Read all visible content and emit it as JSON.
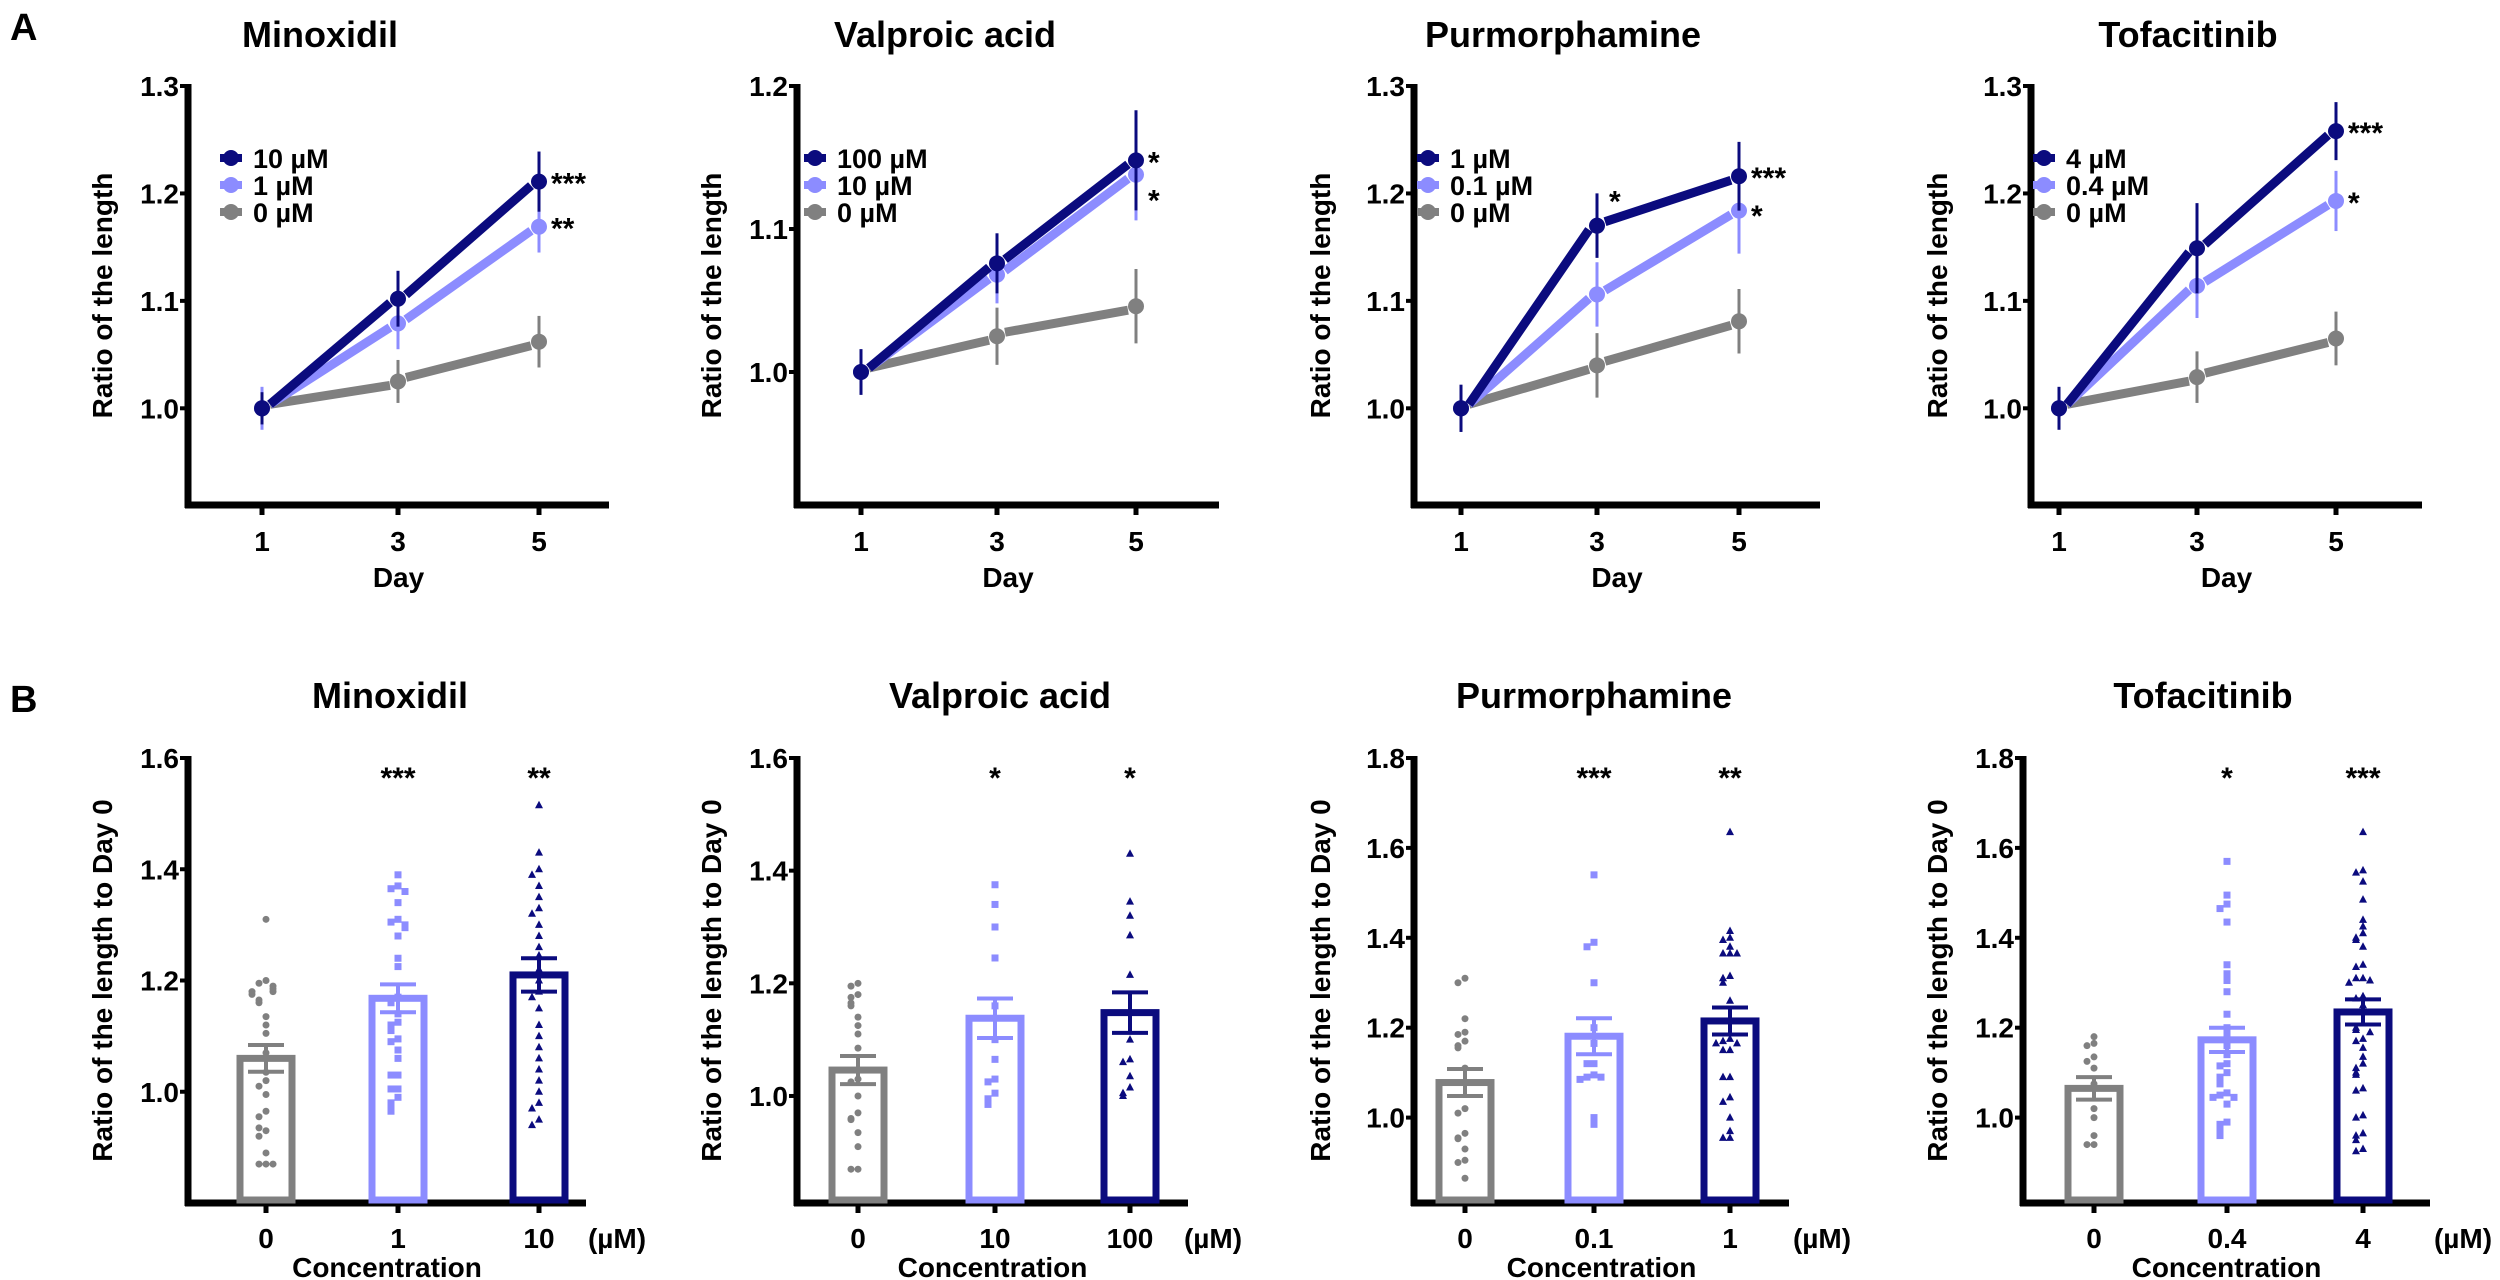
{
  "panel_labels": [
    "A",
    "B"
  ],
  "colors": {
    "high": "#0b0b7e",
    "low": "#8c8cff",
    "zero": "#808080",
    "axis": "#000000"
  },
  "chart_data": [
    {
      "type": "line",
      "panel": "A",
      "title": "Minoxidil",
      "xlabel": "Day",
      "ylabel": "Ratio of the length",
      "x": [
        1,
        3,
        5
      ],
      "xtick_labels": [
        "1",
        "3",
        "5"
      ],
      "ylim": [
        0.91,
        1.3
      ],
      "yticks": [
        1.0,
        1.1,
        1.2,
        1.3
      ],
      "ytick_labels": [
        "1.0",
        "1.1",
        "1.2",
        "1.3"
      ],
      "legend_position": "top-left",
      "series": [
        {
          "name": "10 µM",
          "color": "high",
          "values": [
            1.0,
            1.102,
            1.211
          ],
          "errors": [
            0.015,
            0.026,
            0.028
          ],
          "stars": [
            "",
            "",
            "***"
          ]
        },
        {
          "name": "1 µM",
          "color": "low",
          "values": [
            1.0,
            1.079,
            1.169
          ],
          "errors": [
            0.02,
            0.024,
            0.024
          ],
          "stars": [
            "",
            "",
            "**"
          ]
        },
        {
          "name": "0 µM",
          "color": "zero",
          "values": [
            1.0,
            1.025,
            1.062
          ],
          "errors": [
            0.012,
            0.02,
            0.024
          ],
          "stars": [
            "",
            "",
            ""
          ]
        }
      ]
    },
    {
      "type": "line",
      "panel": "A",
      "title": "Valproic acid",
      "xlabel": "Day",
      "ylabel": "Ratio of the length",
      "x": [
        1,
        3,
        5
      ],
      "xtick_labels": [
        "1",
        "3",
        "5"
      ],
      "ylim": [
        0.907,
        1.2
      ],
      "yticks": [
        1.0,
        1.1,
        1.2
      ],
      "ytick_labels": [
        "1.0",
        "1.1",
        "1.2"
      ],
      "legend_position": "top-left",
      "series": [
        {
          "name": "100 µM",
          "color": "high",
          "values": [
            1.0,
            1.076,
            1.148
          ],
          "errors": [
            0.016,
            0.021,
            0.035
          ],
          "stars": [
            "",
            "",
            "*"
          ]
        },
        {
          "name": "10 µM",
          "color": "low",
          "values": [
            1.0,
            1.068,
            1.138
          ],
          "errors": [
            0.015,
            0.02,
            0.032
          ],
          "stars": [
            "",
            "",
            "*"
          ]
        },
        {
          "name": "0 µM",
          "color": "zero",
          "values": [
            1.0,
            1.025,
            1.046
          ],
          "errors": [
            0.012,
            0.02,
            0.026
          ],
          "stars": [
            "",
            "",
            ""
          ]
        }
      ]
    },
    {
      "type": "line",
      "panel": "A",
      "title": "Purmorphamine",
      "xlabel": "Day",
      "ylabel": "Ratio of the length",
      "x": [
        1,
        3,
        5
      ],
      "xtick_labels": [
        "1",
        "3",
        "5"
      ],
      "ylim": [
        0.91,
        1.3
      ],
      "yticks": [
        1.0,
        1.1,
        1.2,
        1.3
      ],
      "ytick_labels": [
        "1.0",
        "1.1",
        "1.2",
        "1.3"
      ],
      "legend_position": "top-left",
      "series": [
        {
          "name": "1 µM",
          "color": "high",
          "values": [
            1.0,
            1.17,
            1.216
          ],
          "errors": [
            0.022,
            0.03,
            0.032
          ],
          "stars": [
            "",
            "*",
            "***"
          ]
        },
        {
          "name": "0.1 µM",
          "color": "low",
          "values": [
            1.0,
            1.106,
            1.184
          ],
          "errors": [
            0.015,
            0.03,
            0.04
          ],
          "stars": [
            "",
            "",
            "*"
          ]
        },
        {
          "name": "0 µM",
          "color": "zero",
          "values": [
            1.0,
            1.04,
            1.081
          ],
          "errors": [
            0.012,
            0.03,
            0.03
          ],
          "stars": [
            "",
            "",
            ""
          ]
        }
      ]
    },
    {
      "type": "line",
      "panel": "A",
      "title": "Tofacitinib",
      "xlabel": "Day",
      "ylabel": "Ratio of the length",
      "x": [
        1,
        3,
        5
      ],
      "xtick_labels": [
        "1",
        "3",
        "5"
      ],
      "ylim": [
        0.91,
        1.3
      ],
      "yticks": [
        1.0,
        1.1,
        1.2,
        1.3
      ],
      "ytick_labels": [
        "1.0",
        "1.1",
        "1.2",
        "1.3"
      ],
      "legend_position": "top-left",
      "series": [
        {
          "name": "4 µM",
          "color": "high",
          "values": [
            1.0,
            1.149,
            1.258
          ],
          "errors": [
            0.02,
            0.042,
            0.027
          ],
          "stars": [
            "",
            "",
            "***"
          ]
        },
        {
          "name": "0.4 µM",
          "color": "low",
          "values": [
            1.0,
            1.114,
            1.193
          ],
          "errors": [
            0.015,
            0.03,
            0.028
          ],
          "stars": [
            "",
            "",
            "*"
          ]
        },
        {
          "name": "0 µM",
          "color": "zero",
          "values": [
            1.0,
            1.029,
            1.065
          ],
          "errors": [
            0.012,
            0.024,
            0.025
          ],
          "stars": [
            "",
            "",
            ""
          ]
        }
      ]
    },
    {
      "type": "bar",
      "panel": "B",
      "title": "Minoxidil",
      "xlabel": "Concentration",
      "ylabel": "Ratio of the length to Day 0",
      "unit": "(µM)",
      "categories": [
        "0",
        "1",
        "10"
      ],
      "colors": [
        "zero",
        "low",
        "high"
      ],
      "markers": [
        "circle",
        "square",
        "triangle"
      ],
      "values": [
        1.06,
        1.168,
        1.21
      ],
      "errors": [
        0.024,
        0.025,
        0.03
      ],
      "stars": [
        "",
        "***",
        "**"
      ],
      "ylim": [
        0.8,
        1.6
      ],
      "yticks": [
        1.0,
        1.2,
        1.4,
        1.6
      ],
      "ytick_labels": [
        "1.0",
        "1.2",
        "1.4",
        "1.6"
      ],
      "points": [
        [
          1.31,
          1.2,
          1.195,
          1.19,
          1.185,
          1.18,
          1.18,
          1.175,
          1.165,
          1.16,
          1.135,
          1.12,
          1.105,
          1.07,
          1.035,
          1.02,
          1.01,
          0.995,
          0.965,
          0.955,
          0.93,
          0.935,
          0.92,
          0.89,
          0.87,
          0.87,
          0.87
        ],
        [
          1.39,
          1.37,
          1.365,
          1.36,
          1.34,
          1.31,
          1.305,
          1.3,
          1.295,
          1.28,
          1.24,
          1.225,
          1.17,
          1.16,
          1.14,
          1.125,
          1.12,
          1.11,
          1.095,
          1.09,
          1.075,
          1.06,
          1.03,
          1.03,
          1.005,
          1.005,
          0.99,
          0.98,
          0.975,
          0.965
        ],
        [
          1.515,
          1.43,
          1.4,
          1.39,
          1.37,
          1.35,
          1.33,
          1.32,
          1.3,
          1.28,
          1.26,
          1.245,
          1.22,
          1.2,
          1.18,
          1.17,
          1.15,
          1.12,
          1.1,
          1.08,
          1.06,
          1.04,
          1.02,
          1.0,
          0.98,
          0.97,
          0.95,
          0.94
        ]
      ]
    },
    {
      "type": "bar",
      "panel": "B",
      "title": "Valproic acid",
      "xlabel": "Concentration",
      "ylabel": "Ratio of the length to Day 0",
      "unit": "(µM)",
      "categories": [
        "0",
        "10",
        "100"
      ],
      "colors": [
        "zero",
        "low",
        "high"
      ],
      "markers": [
        "circle",
        "square",
        "triangle"
      ],
      "values": [
        1.046,
        1.138,
        1.148
      ],
      "errors": [
        0.025,
        0.035,
        0.036
      ],
      "stars": [
        "",
        "*",
        "*"
      ],
      "ylim": [
        0.81,
        1.6
      ],
      "yticks": [
        1.0,
        1.2,
        1.4,
        1.6
      ],
      "ytick_labels": [
        "1.0",
        "1.2",
        "1.4",
        "1.6"
      ],
      "points": [
        [
          1.2,
          1.195,
          1.18,
          1.175,
          1.165,
          1.16,
          1.14,
          1.125,
          1.11,
          1.085,
          1.03,
          1.025,
          1.0,
          0.97,
          0.96,
          0.958,
          0.935,
          0.91,
          0.87,
          0.87
        ],
        [
          1.375,
          1.34,
          1.3,
          1.245,
          1.16,
          1.1,
          1.065,
          1.03,
          1.025,
          1.005,
          0.995,
          0.985
        ],
        [
          1.43,
          1.345,
          1.32,
          1.285,
          1.215,
          1.1,
          1.065,
          1.06,
          1.035,
          1.015,
          1.005,
          1.0
        ]
      ]
    },
    {
      "type": "bar",
      "panel": "B",
      "title": "Purmorphamine",
      "xlabel": "Concentration",
      "ylabel": "Ratio of the length to Day 0",
      "unit": "(µM)",
      "categories": [
        "0",
        "0.1",
        "1"
      ],
      "colors": [
        "zero",
        "low",
        "high"
      ],
      "markers": [
        "circle",
        "square",
        "triangle"
      ],
      "values": [
        1.078,
        1.181,
        1.215
      ],
      "errors": [
        0.03,
        0.04,
        0.03
      ],
      "stars": [
        "",
        "***",
        "**"
      ],
      "ylim": [
        0.81,
        1.8
      ],
      "yticks": [
        1.0,
        1.2,
        1.4,
        1.6,
        1.8
      ],
      "ytick_labels": [
        "1.0",
        "1.2",
        "1.4",
        "1.6",
        "1.8"
      ],
      "points": [
        [
          1.31,
          1.3,
          1.22,
          1.19,
          1.185,
          1.17,
          1.16,
          1.155,
          1.11,
          1.02,
          1.01,
          0.965,
          0.955,
          0.953,
          0.93,
          0.905,
          0.9,
          0.865
        ],
        [
          1.54,
          1.39,
          1.38,
          1.3,
          1.2,
          1.165,
          1.12,
          1.12,
          1.095,
          1.09,
          1.09,
          1.085,
          1.0,
          0.985
        ],
        [
          1.635,
          1.415,
          1.4,
          1.395,
          1.38,
          1.365,
          1.365,
          1.365,
          1.315,
          1.31,
          1.3,
          1.26,
          1.175,
          1.17,
          1.165,
          1.165,
          1.15,
          1.15,
          1.09,
          1.09,
          1.045,
          1.035,
          1.0,
          0.97,
          0.955,
          0.955
        ]
      ]
    },
    {
      "type": "bar",
      "panel": "B",
      "title": "Tofacitinib",
      "xlabel": "Concentration",
      "ylabel": "Ratio of the length to Day 0",
      "unit": "(µM)",
      "categories": [
        "0",
        "0.4",
        "4"
      ],
      "colors": [
        "zero",
        "low",
        "high"
      ],
      "markers": [
        "circle",
        "square",
        "triangle"
      ],
      "values": [
        1.065,
        1.173,
        1.235
      ],
      "errors": [
        0.025,
        0.027,
        0.028
      ],
      "stars": [
        "",
        "*",
        "***"
      ],
      "ylim": [
        0.81,
        1.8
      ],
      "yticks": [
        1.0,
        1.2,
        1.4,
        1.6,
        1.8
      ],
      "ytick_labels": [
        "1.0",
        "1.2",
        "1.4",
        "1.6",
        "1.8"
      ],
      "points": [
        [
          1.18,
          1.165,
          1.16,
          1.135,
          1.125,
          1.11,
          1.075,
          1.02,
          1.0,
          0.96,
          0.94,
          0.94
        ],
        [
          1.57,
          1.495,
          1.475,
          1.465,
          1.435,
          1.34,
          1.32,
          1.305,
          1.28,
          1.23,
          1.2,
          1.185,
          1.16,
          1.14,
          1.12,
          1.115,
          1.1,
          1.09,
          1.08,
          1.075,
          1.055,
          1.05,
          1.045,
          1.045,
          1.03,
          0.99,
          0.985,
          0.975,
          0.97,
          0.96
        ],
        [
          1.635,
          1.55,
          1.545,
          1.525,
          1.485,
          1.44,
          1.425,
          1.41,
          1.4,
          1.395,
          1.38,
          1.34,
          1.335,
          1.31,
          1.31,
          1.305,
          1.3,
          1.27,
          1.265,
          1.25,
          1.21,
          1.2,
          1.195,
          1.19,
          1.175,
          1.17,
          1.155,
          1.135,
          1.12,
          1.11,
          1.1,
          1.095,
          1.065,
          1.06,
          1.005,
          1.0,
          0.965,
          0.96,
          0.95,
          0.93,
          0.925
        ]
      ]
    }
  ]
}
